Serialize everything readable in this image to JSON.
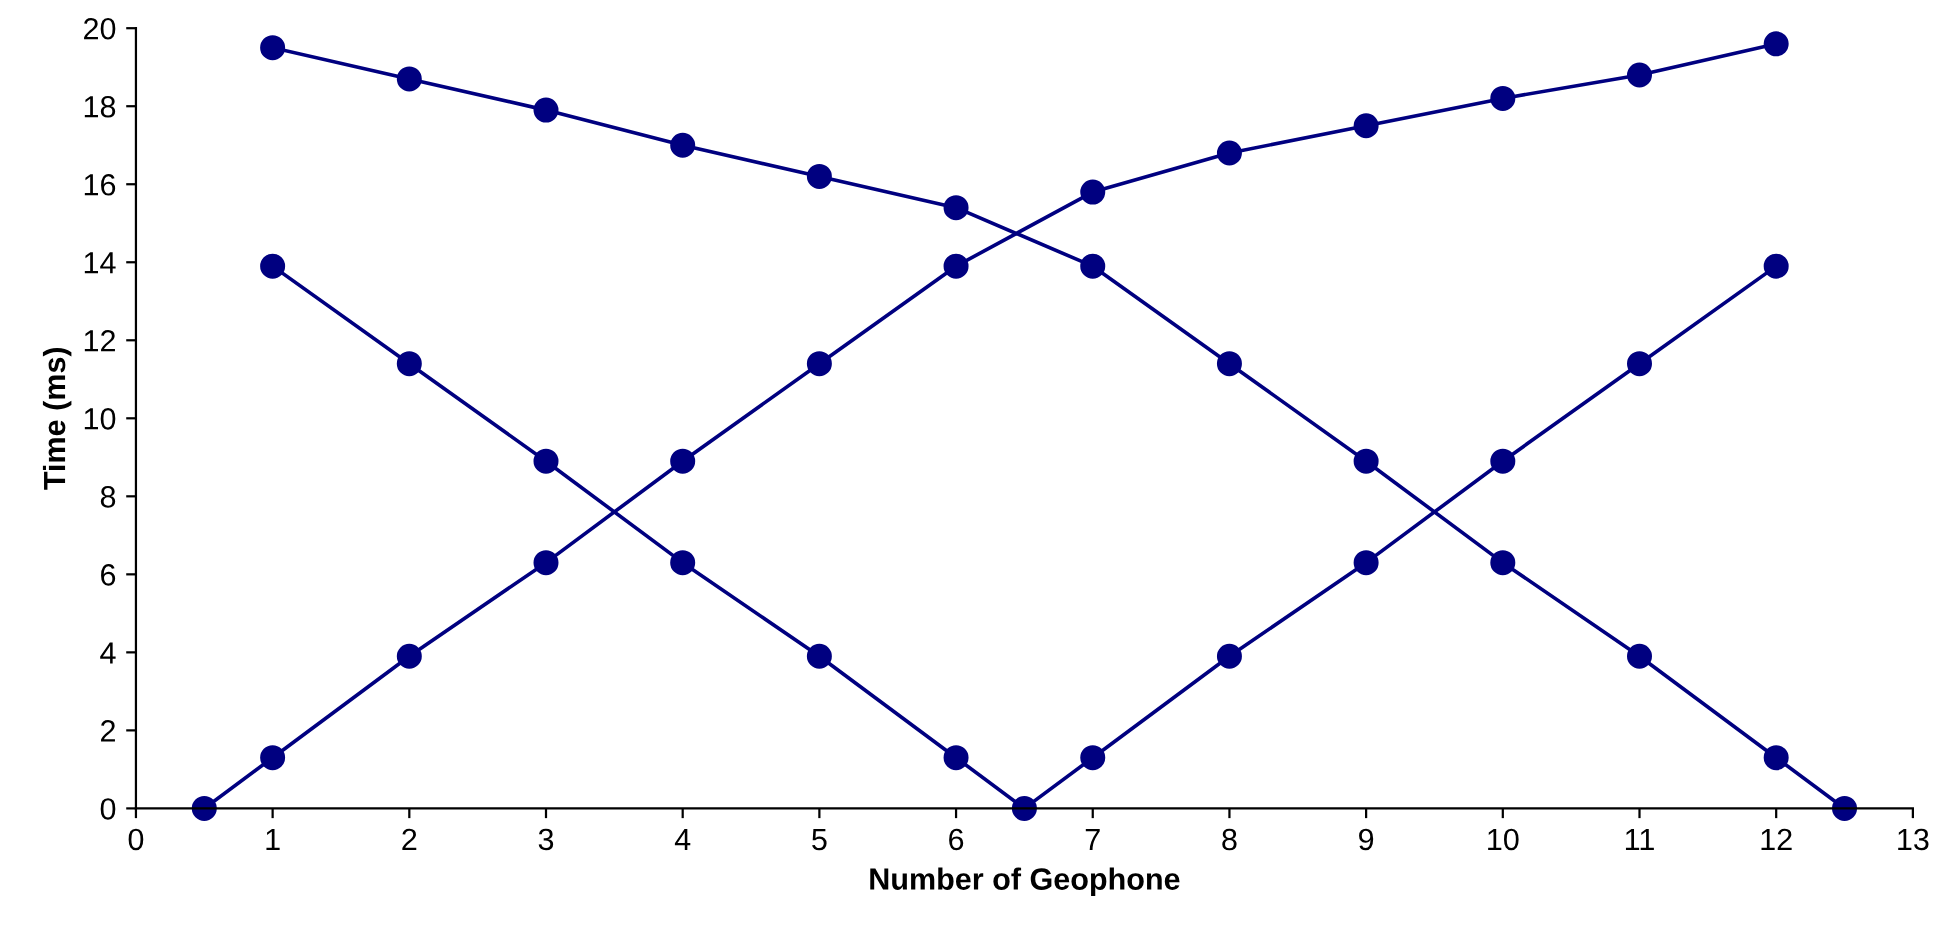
{
  "chart_data": {
    "type": "line",
    "xlabel": "Number of Geophone",
    "ylabel": "Time (ms)",
    "marker": "circle",
    "line_style": "solid",
    "grid": false,
    "legend": false,
    "xlim": [
      0,
      13
    ],
    "xticks": [
      0,
      1,
      2,
      3,
      4,
      5,
      6,
      7,
      8,
      9,
      10,
      11,
      12,
      13
    ],
    "ylim": [
      0,
      20
    ],
    "yticks": [
      0,
      2,
      4,
      6,
      8,
      10,
      12,
      14,
      16,
      18,
      20
    ],
    "series": [
      {
        "color": "#000080",
        "x": [
          0.5,
          1,
          2,
          3,
          4,
          5,
          6,
          7,
          8,
          9,
          10,
          11,
          12
        ],
        "values": [
          0,
          1.3,
          3.9,
          6.3,
          8.9,
          11.4,
          13.9,
          15.8,
          16.8,
          17.5,
          18.2,
          18.8,
          19.6
        ]
      },
      {
        "color": "#000080",
        "x": [
          1,
          2,
          3,
          4,
          5,
          6,
          7,
          8,
          9,
          10,
          11,
          12,
          12.5
        ],
        "values": [
          19.5,
          18.7,
          17.9,
          17.0,
          16.2,
          15.4,
          13.9,
          11.4,
          8.9,
          6.3,
          3.9,
          1.3,
          0
        ]
      },
      {
        "color": "#000080",
        "x": [
          1,
          2,
          3,
          4,
          5,
          6,
          6.5,
          7,
          8,
          9,
          10,
          11,
          12
        ],
        "values": [
          13.9,
          11.4,
          8.9,
          6.3,
          3.9,
          1.3,
          0,
          1.3,
          3.9,
          6.3,
          8.9,
          11.4,
          13.9
        ]
      }
    ]
  }
}
